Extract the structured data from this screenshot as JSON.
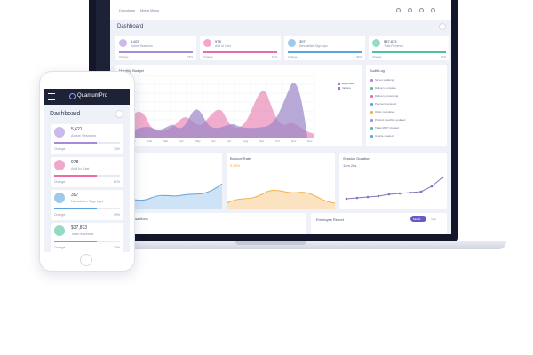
{
  "phone": {
    "brand": "QuantumPro",
    "title": "Dashboard",
    "stats": [
      {
        "value": "5,621",
        "label": "Active Sessions",
        "change_label": "Change",
        "change": "73%"
      },
      {
        "value": "978",
        "label": "Add to Cart",
        "change_label": "Change",
        "change": "61%"
      },
      {
        "value": "307",
        "label": "Newsletter Sign Ups",
        "change_label": "Change",
        "change": "39%"
      },
      {
        "value": "$37,873",
        "label": "Total Revenue",
        "change_label": "Change",
        "change": "73%"
      }
    ]
  },
  "laptop": {
    "nav": [
      "Dropdown",
      "Mega Menu"
    ],
    "title": "Dashboard",
    "stats": [
      {
        "value": "5,621",
        "label": "Active Sessions",
        "change_label": "Change",
        "change": "73%"
      },
      {
        "value": "978",
        "label": "Add to Cart",
        "change_label": "Change",
        "change": "61%"
      },
      {
        "value": "307",
        "label": "Newsletter Sign Ups",
        "change_label": "Change",
        "change": "39%"
      },
      {
        "value": "$37,873",
        "label": "Total Revenue",
        "change_label": "Change",
        "change": "73%"
      }
    ],
    "budget": {
      "title": "Monthly Budget",
      "legend": [
        "Expenses",
        "Income"
      ],
      "months": [
        "Jan",
        "Feb",
        "Mar",
        "Apr",
        "May",
        "Jun",
        "Jul",
        "Aug",
        "Sep",
        "Oct",
        "Nov",
        "Dec"
      ]
    },
    "audit_log": {
      "title": "Audit Log",
      "items": [
        "Server updating",
        "Delivery complete",
        "Delivery processing",
        "Payment received",
        "Order completed",
        "Product specifics updated",
        "Ticket #607 Created",
        "Course created"
      ]
    },
    "widgets": [
      {
        "title": "Bounce Rate",
        "value": "2.53%"
      },
      {
        "title": "Session Duration",
        "value": "12m 26s"
      }
    ],
    "transactions": "Transactions",
    "employee_report": {
      "title": "Employee Report",
      "buttons": [
        "Month",
        "Year"
      ]
    }
  }
}
